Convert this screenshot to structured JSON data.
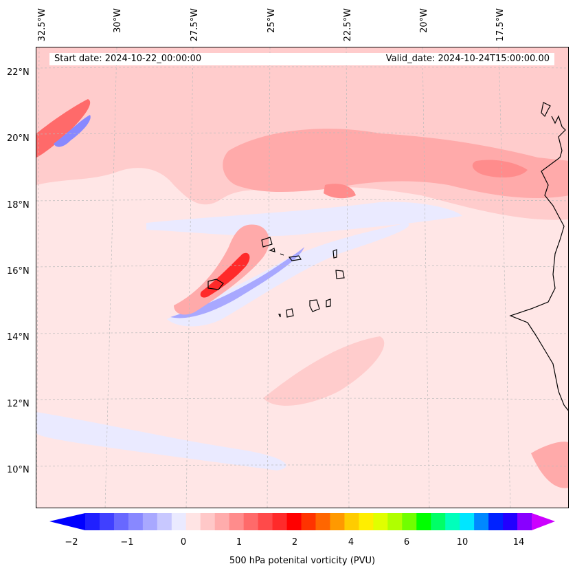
{
  "header": {
    "start_date": "Start date: 2024-10-22_00:00:00",
    "valid_date": "Valid_date: 2024-10-24T15:00:00.00"
  },
  "axes": {
    "longitudes": [
      "32.5°W",
      "30°W",
      "27.5°W",
      "25°W",
      "22.5°W",
      "20°W",
      "17.5°W"
    ],
    "latitudes": [
      "22°N",
      "20°N",
      "18°N",
      "16°N",
      "14°N",
      "12°N",
      "10°N"
    ]
  },
  "colorbar": {
    "label": "500 hPa potenital vorticity (PVU)",
    "ticks": [
      "−2",
      "−1",
      "0",
      "1",
      "2",
      "4",
      "6",
      "10",
      "14"
    ],
    "colors": [
      "#0000ff",
      "#2020ff",
      "#4040ff",
      "#6868ff",
      "#8888ff",
      "#a8a8ff",
      "#c8c8ff",
      "#eaeaff",
      "#ffe4e4",
      "#ffc8c8",
      "#ffacac",
      "#ff8c8c",
      "#ff6a6a",
      "#ff4a4a",
      "#ff2a2a",
      "#ff0000",
      "#ff3300",
      "#ff6600",
      "#ff9900",
      "#ffcc00",
      "#ffee00",
      "#e0ff00",
      "#b0ff00",
      "#70ff00",
      "#00ff00",
      "#00ff66",
      "#00ffbb",
      "#00e6ff",
      "#0088ff",
      "#0022ff",
      "#2200ff",
      "#8800ff",
      "#cc00ff"
    ]
  },
  "colors": {
    "background_field": "#ffe6e6",
    "weak_positive": "#ffcccc",
    "moderate_positive": "#ffaaaa",
    "strong_positive": "#ff3333",
    "weak_negative": "#eaeaff",
    "moderate_negative": "#a8a8ff",
    "coastline": "#000000",
    "gridline": "#bbbbbb"
  }
}
